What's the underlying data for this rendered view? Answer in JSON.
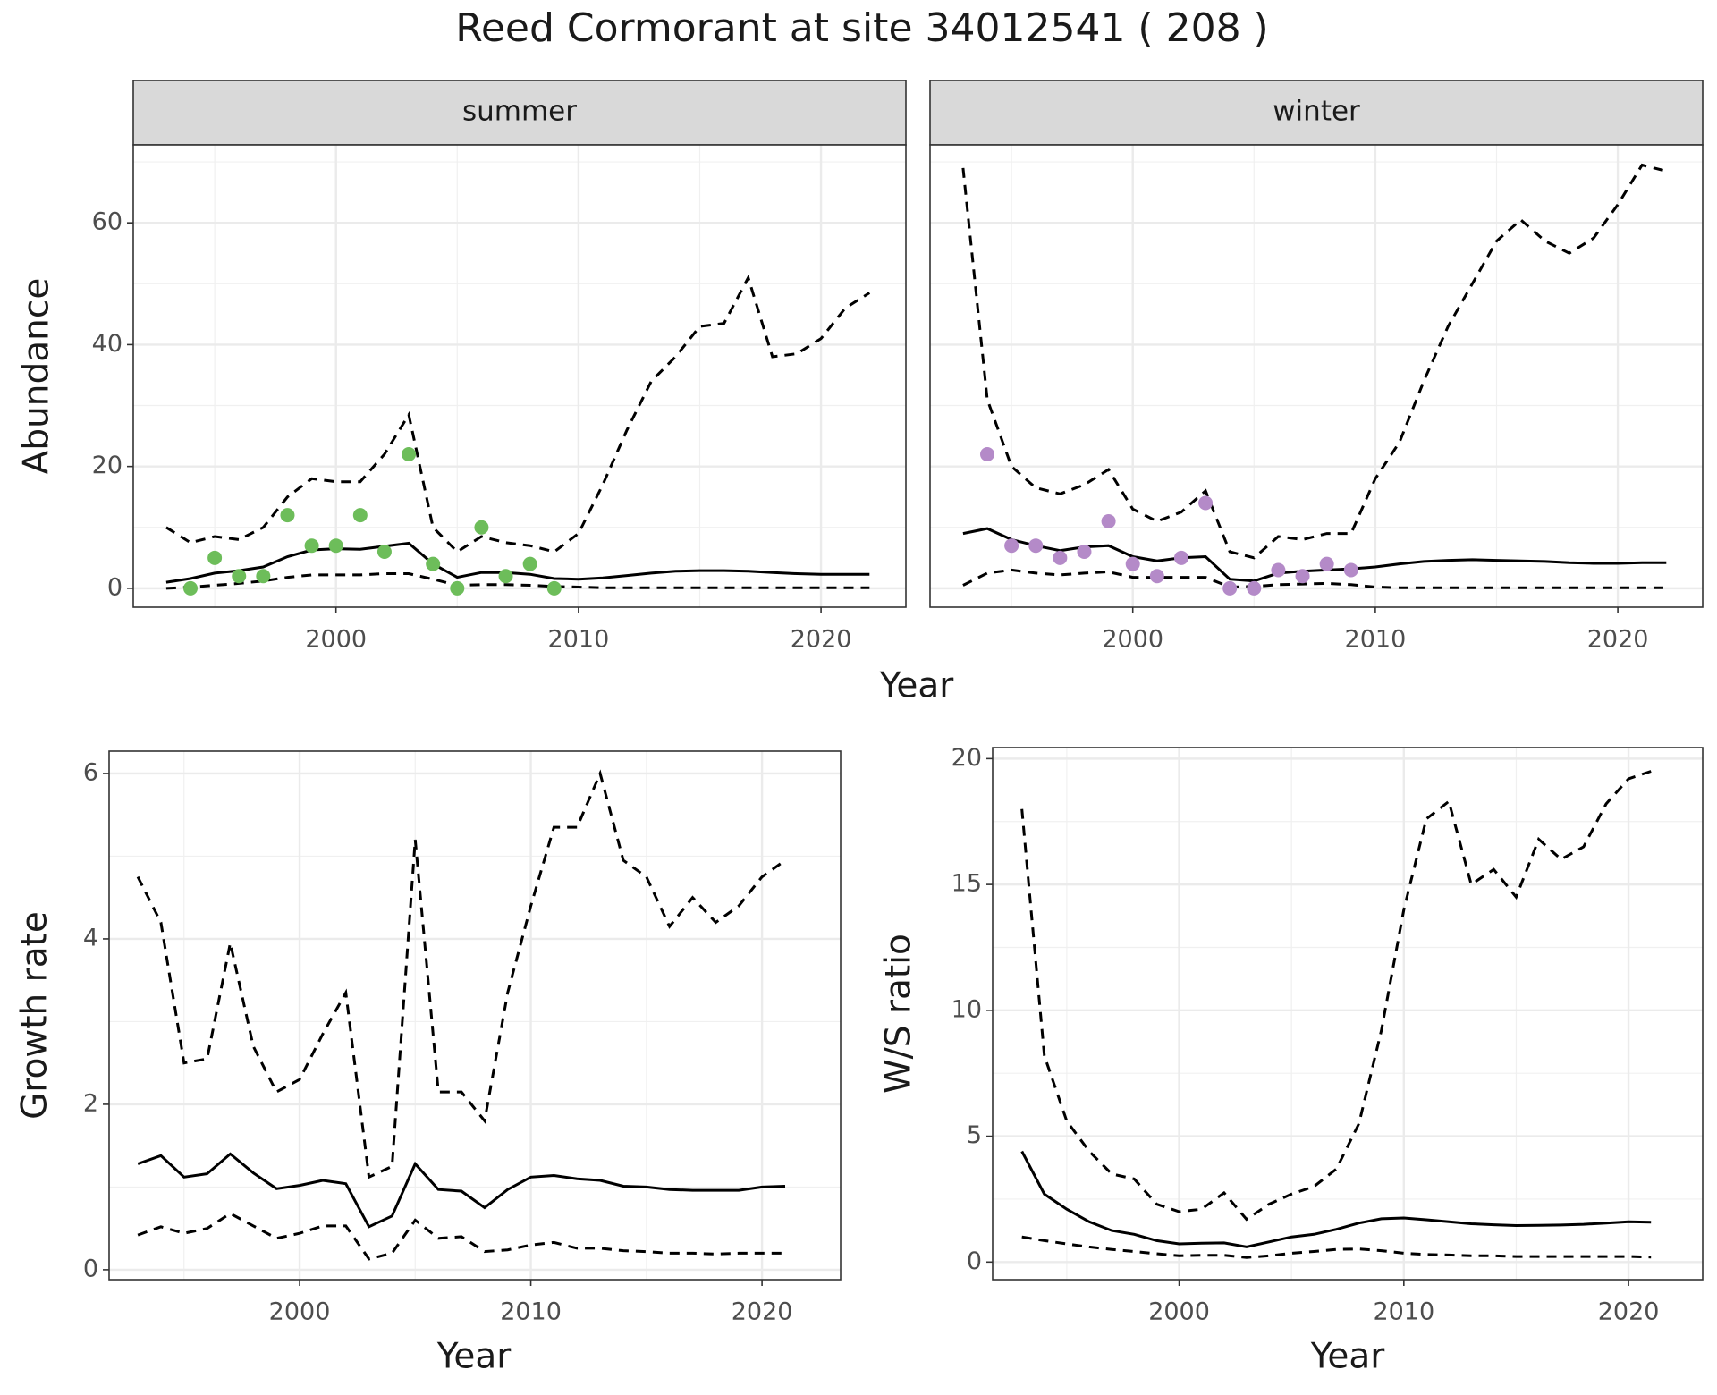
{
  "title": "Reed Cormorant at site 34012541 ( 208 )",
  "chart_data": [
    {
      "type": "line",
      "xlabel": "Year",
      "ylabel": "Abundance",
      "xlim": [
        1991.64,
        2023.5
      ],
      "ylim": [
        -3.1,
        72.8
      ],
      "xticks": [
        2000,
        2010,
        2020
      ],
      "xminorticks": [
        1995,
        2005,
        2015
      ],
      "yticks": [
        0,
        20,
        40,
        60
      ],
      "yminorticks": [
        10,
        30,
        50,
        70
      ],
      "grid": true,
      "facets": [
        {
          "strip": "summer",
          "series": [
            {
              "style": "solid",
              "color": "#000000",
              "x": [
                1993,
                1994,
                1995,
                1996,
                1997,
                1998,
                1999,
                2000,
                2001,
                2002,
                2003,
                2004,
                2005,
                2006,
                2007,
                2008,
                2009,
                2010,
                2011,
                2012,
                2013,
                2014,
                2015,
                2016,
                2017,
                2018,
                2019,
                2020,
                2021,
                2022
              ],
              "values": [
                1.0,
                1.6,
                2.5,
                2.9,
                3.5,
                5.2,
                6.3,
                6.5,
                6.4,
                6.9,
                7.4,
                4.0,
                1.8,
                2.6,
                2.6,
                2.3,
                1.6,
                1.5,
                1.7,
                2.1,
                2.5,
                2.8,
                2.9,
                2.9,
                2.8,
                2.6,
                2.4,
                2.3,
                2.3,
                2.3
              ]
            },
            {
              "style": "dashed",
              "color": "#000000",
              "x": [
                1993,
                1994,
                1995,
                1996,
                1997,
                1998,
                1999,
                2000,
                2001,
                2002,
                2003,
                2004,
                2005,
                2006,
                2007,
                2008,
                2009,
                2010,
                2011,
                2012,
                2013,
                2014,
                2015,
                2016,
                2017,
                2018,
                2019,
                2020,
                2021,
                2022
              ],
              "values": [
                10,
                7.5,
                8.5,
                8,
                10,
                15,
                18,
                17.5,
                17.5,
                22,
                28.5,
                10,
                6,
                8.5,
                7.5,
                7,
                6,
                9,
                17,
                26,
                34,
                38,
                43,
                43.5,
                51,
                38,
                38.5,
                41,
                46,
                48.5
              ]
            },
            {
              "style": "dashed",
              "color": "#000000",
              "x": [
                1993,
                1994,
                1995,
                1996,
                1997,
                1998,
                1999,
                2000,
                2001,
                2002,
                2003,
                2004,
                2005,
                2006,
                2007,
                2008,
                2009,
                2010,
                2011,
                2012,
                2013,
                2014,
                2015,
                2016,
                2017,
                2018,
                2019,
                2020,
                2021,
                2022
              ],
              "values": [
                0,
                0.2,
                0.5,
                0.8,
                1.2,
                1.8,
                2.2,
                2.2,
                2.2,
                2.4,
                2.4,
                1.5,
                0.5,
                0.6,
                0.6,
                0.5,
                0.3,
                0.2,
                0.1,
                0.1,
                0.1,
                0.1,
                0.1,
                0.1,
                0.1,
                0.1,
                0.1,
                0.1,
                0.1,
                0.1
              ]
            },
            {
              "style": "points",
              "color": "#6dbd5a",
              "x": [
                1994,
                1995,
                1996,
                1997,
                1998,
                1999,
                2000,
                2001,
                2002,
                2003,
                2004,
                2005,
                2006,
                2007,
                2008,
                2009
              ],
              "values": [
                0,
                5,
                2,
                2,
                12,
                7,
                7,
                12,
                6,
                22,
                4,
                0,
                10,
                2,
                4,
                0
              ]
            }
          ]
        },
        {
          "strip": "winter",
          "series": [
            {
              "style": "solid",
              "color": "#000000",
              "x": [
                1993,
                1994,
                1995,
                1996,
                1997,
                1998,
                1999,
                2000,
                2001,
                2002,
                2003,
                2004,
                2005,
                2006,
                2007,
                2008,
                2009,
                2010,
                2011,
                2012,
                2013,
                2014,
                2015,
                2016,
                2017,
                2018,
                2019,
                2020,
                2021,
                2022
              ],
              "values": [
                9,
                9.8,
                8,
                7,
                6.2,
                6.8,
                7,
                5.2,
                4.5,
                5,
                5.2,
                1.5,
                1.2,
                2.5,
                2.8,
                3,
                3.2,
                3.5,
                4,
                4.4,
                4.6,
                4.7,
                4.6,
                4.5,
                4.4,
                4.2,
                4.1,
                4.1,
                4.2,
                4.2
              ]
            },
            {
              "style": "dashed",
              "color": "#000000",
              "x": [
                1993,
                1994,
                1995,
                1996,
                1997,
                1998,
                1999,
                2000,
                2001,
                2002,
                2003,
                2004,
                2005,
                2006,
                2007,
                2008,
                2009,
                2010,
                2011,
                2012,
                2013,
                2014,
                2015,
                2016,
                2017,
                2018,
                2019,
                2020,
                2021,
                2022
              ],
              "values": [
                69,
                31,
                20,
                16.5,
                15.5,
                17,
                19.5,
                13,
                11,
                12.5,
                16,
                6,
                5,
                8.5,
                8,
                9,
                9,
                18,
                24,
                34,
                43,
                50,
                57,
                60.5,
                57,
                55,
                57.5,
                63,
                69.5,
                68.5
              ]
            },
            {
              "style": "dashed",
              "color": "#000000",
              "x": [
                1993,
                1994,
                1995,
                1996,
                1997,
                1998,
                1999,
                2000,
                2001,
                2002,
                2003,
                2004,
                2005,
                2006,
                2007,
                2008,
                2009,
                2010,
                2011,
                2012,
                2013,
                2014,
                2015,
                2016,
                2017,
                2018,
                2019,
                2020,
                2021,
                2022
              ],
              "values": [
                0.5,
                2.5,
                3,
                2.5,
                2.2,
                2.5,
                2.7,
                1.8,
                1.8,
                1.8,
                1.8,
                0.2,
                0.3,
                0.6,
                0.7,
                0.8,
                0.6,
                0.2,
                0.1,
                0.1,
                0.1,
                0.1,
                0.1,
                0.1,
                0.1,
                0.1,
                0.1,
                0.1,
                0.1,
                0.1
              ]
            },
            {
              "style": "points",
              "color": "#b48ac8",
              "x": [
                1994,
                1995,
                1996,
                1997,
                1998,
                1999,
                2000,
                2001,
                2002,
                2003,
                2004,
                2005,
                2006,
                2007,
                2008,
                2009
              ],
              "values": [
                22,
                7,
                7,
                5,
                6,
                11,
                4,
                2,
                5,
                14,
                0,
                0,
                3,
                2,
                4,
                3
              ]
            }
          ]
        }
      ]
    },
    {
      "type": "line",
      "xlabel": "Year",
      "ylabel": "Growth rate",
      "xlim": [
        1991.76,
        2023.4
      ],
      "ylim": [
        -0.12,
        6.27
      ],
      "xticks": [
        2000,
        2010,
        2020
      ],
      "xminorticks": [
        1995,
        2005,
        2015
      ],
      "yticks": [
        0,
        2,
        4,
        6
      ],
      "yminorticks": [
        1,
        3,
        5
      ],
      "grid": true,
      "series": [
        {
          "style": "solid",
          "color": "#000000",
          "x": [
            1993,
            1994,
            1995,
            1996,
            1997,
            1998,
            1999,
            2000,
            2001,
            2002,
            2003,
            2004,
            2005,
            2006,
            2007,
            2008,
            2009,
            2010,
            2011,
            2012,
            2013,
            2014,
            2015,
            2016,
            2017,
            2018,
            2019,
            2020,
            2021
          ],
          "values": [
            1.28,
            1.38,
            1.12,
            1.16,
            1.4,
            1.17,
            0.98,
            1.02,
            1.08,
            1.04,
            0.52,
            0.65,
            1.28,
            0.97,
            0.95,
            0.75,
            0.97,
            1.12,
            1.14,
            1.1,
            1.08,
            1.01,
            1.0,
            0.97,
            0.96,
            0.96,
            0.96,
            1.0,
            1.01
          ]
        },
        {
          "style": "dashed",
          "color": "#000000",
          "x": [
            1993,
            1994,
            1995,
            1996,
            1997,
            1998,
            1999,
            2000,
            2001,
            2002,
            2003,
            2004,
            2005,
            2006,
            2007,
            2008,
            2009,
            2010,
            2011,
            2012,
            2013,
            2014,
            2015,
            2016,
            2017,
            2018,
            2019,
            2020,
            2021
          ],
          "values": [
            4.75,
            4.2,
            2.5,
            2.55,
            3.95,
            2.7,
            2.15,
            2.3,
            2.85,
            3.35,
            1.12,
            1.25,
            5.2,
            2.15,
            2.15,
            1.8,
            3.35,
            4.4,
            5.35,
            5.35,
            6.0,
            4.95,
            4.75,
            4.15,
            4.5,
            4.2,
            4.4,
            4.75,
            4.95
          ]
        },
        {
          "style": "dashed",
          "color": "#000000",
          "x": [
            1993,
            1994,
            1995,
            1996,
            1997,
            1998,
            1999,
            2000,
            2001,
            2002,
            2003,
            2004,
            2005,
            2006,
            2007,
            2008,
            2009,
            2010,
            2011,
            2012,
            2013,
            2014,
            2015,
            2016,
            2017,
            2018,
            2019,
            2020,
            2021
          ],
          "values": [
            0.42,
            0.52,
            0.44,
            0.5,
            0.68,
            0.53,
            0.38,
            0.44,
            0.53,
            0.53,
            0.13,
            0.2,
            0.6,
            0.38,
            0.4,
            0.22,
            0.24,
            0.3,
            0.33,
            0.26,
            0.26,
            0.23,
            0.22,
            0.2,
            0.2,
            0.19,
            0.2,
            0.2,
            0.2
          ]
        }
      ]
    },
    {
      "type": "line",
      "xlabel": "Year",
      "ylabel": "W/S ratio",
      "xlim": [
        1991.7,
        2023.3
      ],
      "ylim": [
        -0.7,
        20.44
      ],
      "xticks": [
        2000,
        2010,
        2020
      ],
      "xminorticks": [
        1995,
        2005,
        2015
      ],
      "yticks": [
        0,
        5,
        10,
        15,
        20
      ],
      "yminorticks": [
        2.5,
        7.5,
        12.5,
        17.5
      ],
      "grid": true,
      "series": [
        {
          "style": "solid",
          "color": "#000000",
          "x": [
            1993,
            1994,
            1995,
            1996,
            1997,
            1998,
            1999,
            2000,
            2001,
            2002,
            2003,
            2004,
            2005,
            2006,
            2007,
            2008,
            2009,
            2010,
            2011,
            2012,
            2013,
            2014,
            2015,
            2016,
            2017,
            2018,
            2019,
            2020,
            2021
          ],
          "values": [
            4.4,
            2.7,
            2.1,
            1.6,
            1.25,
            1.1,
            0.85,
            0.72,
            0.75,
            0.76,
            0.6,
            0.8,
            1.0,
            1.1,
            1.3,
            1.55,
            1.72,
            1.75,
            1.68,
            1.6,
            1.52,
            1.48,
            1.45,
            1.46,
            1.47,
            1.5,
            1.55,
            1.6,
            1.58
          ]
        },
        {
          "style": "dashed",
          "color": "#000000",
          "x": [
            1993,
            1994,
            1995,
            1996,
            1997,
            1998,
            1999,
            2000,
            2001,
            2002,
            2003,
            2004,
            2005,
            2006,
            2007,
            2008,
            2009,
            2010,
            2011,
            2012,
            2013,
            2014,
            2015,
            2016,
            2017,
            2018,
            2019,
            2020,
            2021
          ],
          "values": [
            18,
            8.2,
            5.6,
            4.4,
            3.5,
            3.3,
            2.3,
            2.0,
            2.1,
            2.75,
            1.7,
            2.3,
            2.7,
            3.0,
            3.7,
            5.5,
            9.2,
            14,
            17.6,
            18.3,
            15,
            15.6,
            14.5,
            16.8,
            16,
            16.5,
            18.2,
            19.2,
            19.5
          ]
        },
        {
          "style": "dashed",
          "color": "#000000",
          "x": [
            1993,
            1994,
            1995,
            1996,
            1997,
            1998,
            1999,
            2000,
            2001,
            2002,
            2003,
            2004,
            2005,
            2006,
            2007,
            2008,
            2009,
            2010,
            2011,
            2012,
            2013,
            2014,
            2015,
            2016,
            2017,
            2018,
            2019,
            2020,
            2021
          ],
          "values": [
            1.0,
            0.85,
            0.72,
            0.6,
            0.5,
            0.42,
            0.33,
            0.25,
            0.27,
            0.27,
            0.18,
            0.25,
            0.35,
            0.42,
            0.5,
            0.52,
            0.45,
            0.35,
            0.3,
            0.28,
            0.25,
            0.25,
            0.22,
            0.22,
            0.22,
            0.22,
            0.22,
            0.22,
            0.2
          ]
        }
      ]
    }
  ]
}
